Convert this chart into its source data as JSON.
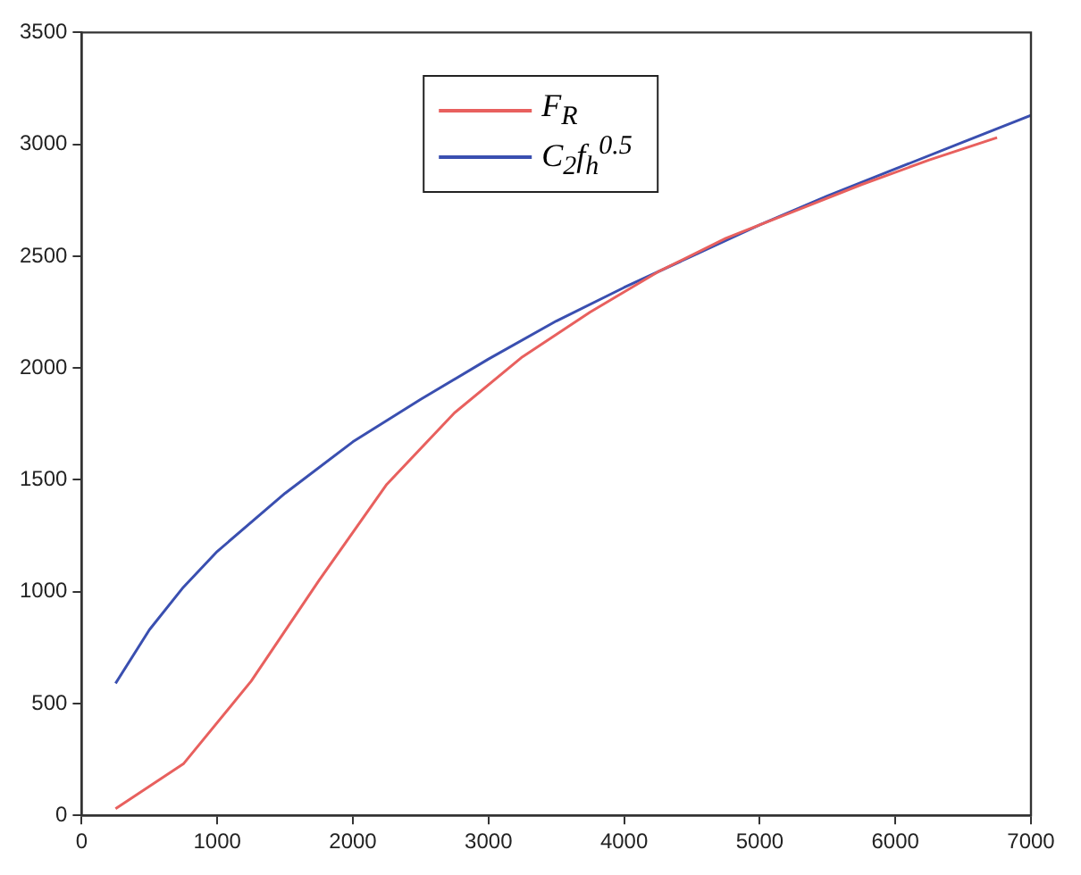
{
  "chart_data": {
    "type": "line",
    "xlim": [
      0,
      7000
    ],
    "xticks": [
      0,
      1000,
      2000,
      3000,
      4000,
      5000,
      6000,
      7000
    ],
    "ylim": [
      0,
      3500
    ],
    "yticks": [
      0,
      500,
      1000,
      1500,
      2000,
      2500,
      3000,
      3500
    ],
    "grid": false,
    "legend": "top",
    "marker": "none",
    "line_style": "solid",
    "series": [
      {
        "name": "F$_{R}$",
        "color": "#e8605e",
        "x": [
          250,
          750,
          1250,
          1750,
          2250,
          2750,
          3250,
          3750,
          4250,
          4750,
          5250,
          5750,
          6250,
          6750
        ],
        "values": [
          30,
          230,
          600,
          1050,
          1480,
          1800,
          2050,
          2250,
          2430,
          2580,
          2700,
          2820,
          2930,
          3030
        ]
      },
      {
        "name": "C$_{2}$f$_{h}$$^{0.5}$",
        "color": "#3a4fb0",
        "x": [
          250,
          500,
          750,
          1000,
          1500,
          2000,
          2500,
          3000,
          3500,
          4000,
          4500,
          5000,
          5500,
          6000,
          6500,
          7000
        ],
        "values": [
          590,
          830,
          1020,
          1180,
          1440,
          1670,
          1860,
          2040,
          2210,
          2360,
          2500,
          2640,
          2770,
          2890,
          3010,
          3130
        ]
      }
    ]
  }
}
